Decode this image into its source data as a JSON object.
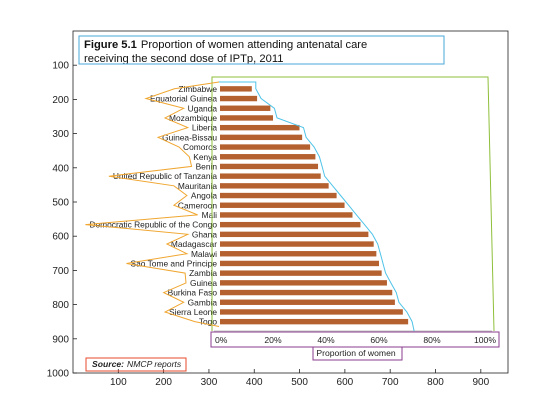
{
  "chart_data": {
    "type": "bar",
    "orientation": "horizontal",
    "title_bold": "Figure 5.1",
    "title_line1": "Proportion of women attending antenatal care",
    "title_line2": "receiving the second dose of IPTp, 2011",
    "xlabel": "Proportion of women",
    "source_prefix": "Source:",
    "source_text": "NMCP reports",
    "xlim": [
      0,
      100
    ],
    "x_ticks": [
      "0%",
      "20%",
      "40%",
      "60%",
      "80%",
      "100%"
    ],
    "categories": [
      "Zimbabwe",
      "Equatorial Guinea",
      "Uganda",
      "Mozambique",
      "Liberia",
      "Guinea-Bissau",
      "Comoros",
      "Kenya",
      "Benin",
      "United Republic of Tanzania",
      "Mauritania",
      "Angola",
      "Cameroon",
      "Mali",
      "Democratic Republic of the Congo",
      "Ghana",
      "Madagascar",
      "Malawi",
      "Sao Tome and Principe",
      "Zambia",
      "Guinea",
      "Burkina Faso",
      "Gambia",
      "Sierra Leone",
      "Togo"
    ],
    "values": [
      12,
      14,
      19,
      20,
      30,
      31,
      34,
      36,
      37,
      38,
      41,
      44,
      47,
      50,
      53,
      56,
      58,
      59,
      60,
      61,
      63,
      65,
      66,
      69,
      71
    ],
    "bar_color": "#b5602f",
    "outer_axes": {
      "x_ticks": [
        "100",
        "200",
        "300",
        "400",
        "500",
        "600",
        "700",
        "800",
        "900"
      ],
      "y_ticks": [
        "100",
        "200",
        "300",
        "400",
        "500",
        "600",
        "700",
        "800",
        "900",
        "1000"
      ],
      "xlim": [
        0,
        960
      ],
      "ylim": [
        1000,
        0
      ]
    },
    "overlay_colors": {
      "title_box": "#4aa8d8",
      "label_outline": "#f0a630",
      "bar_outline": "#4fc3e8",
      "plot_outline": "#8fbf3a",
      "tick_box": "#8a3d8f",
      "xlabel_box": "#8a3d8f",
      "source_box": "#e84a2a"
    }
  }
}
